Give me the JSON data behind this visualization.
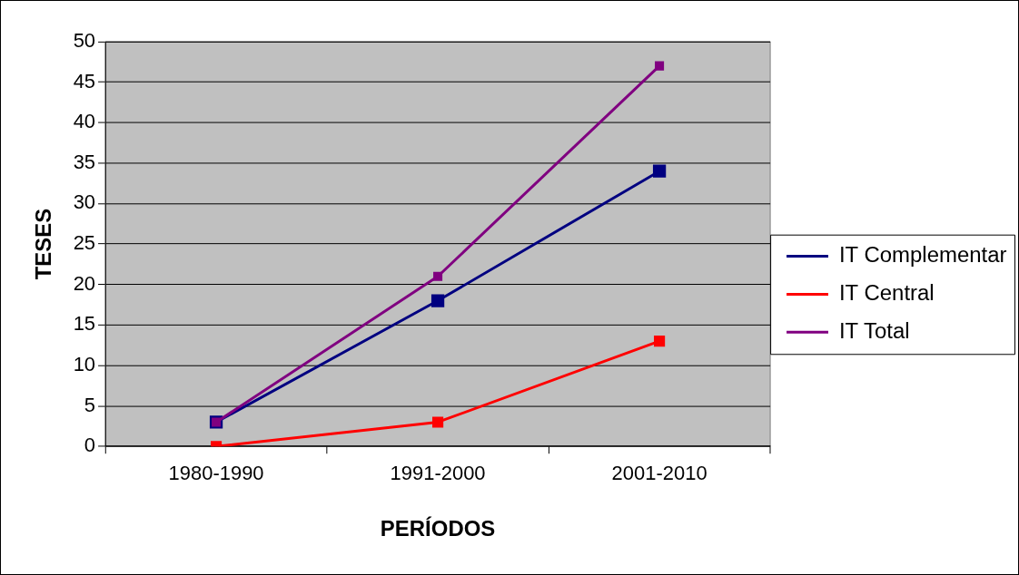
{
  "chart_data": {
    "type": "line",
    "xlabel": "PERÍODOS",
    "ylabel": "TESES",
    "categories": [
      "1980-1990",
      "1991-2000",
      "2001-2010"
    ],
    "series": [
      {
        "name": "IT Complementar",
        "color": "#000080",
        "values": [
          3,
          18,
          34
        ]
      },
      {
        "name": "IT Central",
        "color": "#ff0000",
        "values": [
          0,
          3,
          13
        ]
      },
      {
        "name": "IT Total",
        "color": "#800080",
        "values": [
          3,
          21,
          47
        ]
      }
    ],
    "ylim": [
      0,
      50
    ],
    "yticks": [
      0,
      5,
      10,
      15,
      20,
      25,
      30,
      35,
      40,
      45,
      50
    ],
    "grid": "y",
    "legend": "right",
    "marker": "square",
    "line_style": "solid"
  }
}
